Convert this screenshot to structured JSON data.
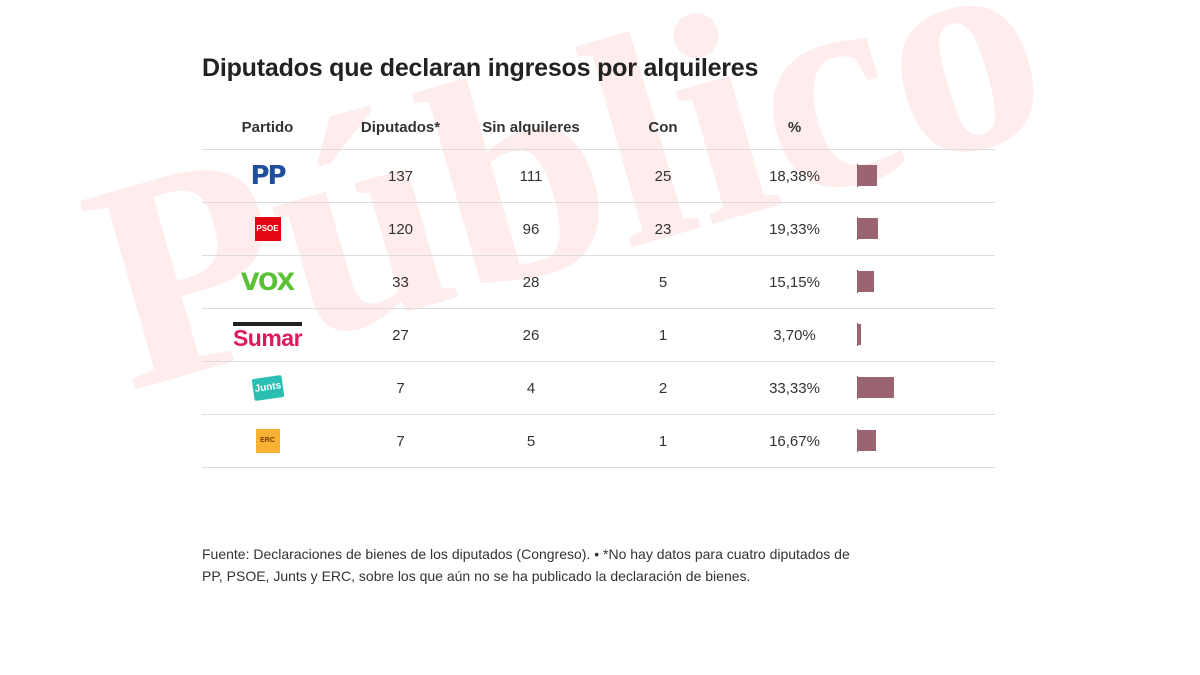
{
  "watermark": "Público",
  "chart_data": {
    "type": "table",
    "title": "Diputados que declaran ingresos por alquileres",
    "columns": [
      "Partido",
      "Diputados*",
      "Sin alquileres",
      "Con",
      "%"
    ],
    "rows": [
      {
        "party": "PP",
        "logo_text": "PP",
        "diputados": "137",
        "sin": "111",
        "con": "25",
        "pct_label": "18,38%",
        "pct": 18.38
      },
      {
        "party": "PSOE",
        "logo_text": "PSOE",
        "diputados": "120",
        "sin": "96",
        "con": "23",
        "pct_label": "19,33%",
        "pct": 19.33
      },
      {
        "party": "VOX",
        "logo_text": "VOX",
        "diputados": "33",
        "sin": "28",
        "con": "5",
        "pct_label": "15,15%",
        "pct": 15.15
      },
      {
        "party": "Sumar",
        "logo_text": "Sumar",
        "diputados": "27",
        "sin": "26",
        "con": "1",
        "pct_label": "3,70%",
        "pct": 3.7
      },
      {
        "party": "Junts",
        "logo_text": "Junts",
        "diputados": "7",
        "sin": "4",
        "con": "2",
        "pct_label": "33,33%",
        "pct": 33.33
      },
      {
        "party": "ERC",
        "logo_text": "ERC",
        "diputados": "7",
        "sin": "5",
        "con": "1",
        "pct_label": "16,67%",
        "pct": 16.67
      }
    ],
    "bar_color": "#9a6470"
  },
  "source": "Fuente: Declaraciones de bienes de los diputados (Congreso). • *No hay datos para cuatro diputados de PP, PSOE, Junts y ERC, sobre los que aún no se ha publicado la declaración de bienes."
}
